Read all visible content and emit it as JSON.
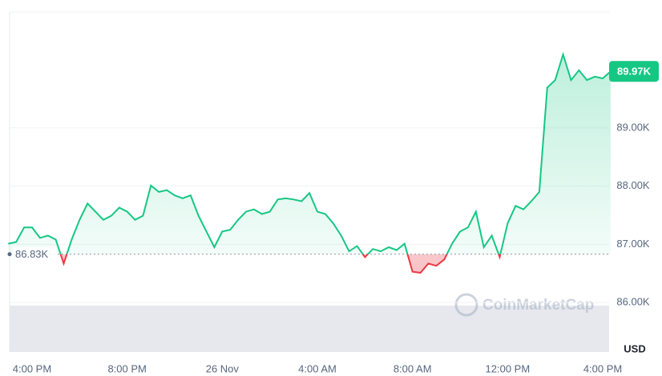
{
  "chart_data": {
    "type": "line",
    "categories": [
      null,
      null,
      null,
      "4:00 PM",
      null,
      null,
      null,
      null,
      null,
      null,
      null,
      null,
      null,
      null,
      null,
      "8:00 PM",
      null,
      null,
      null,
      null,
      null,
      null,
      null,
      null,
      null,
      null,
      null,
      "26 Nov",
      null,
      null,
      null,
      null,
      null,
      null,
      null,
      null,
      null,
      null,
      null,
      "4:00 AM",
      null,
      null,
      null,
      null,
      null,
      null,
      null,
      null,
      null,
      null,
      null,
      "8:00 AM",
      null,
      null,
      null,
      null,
      null,
      null,
      null,
      null,
      null,
      null,
      null,
      "12:00 PM",
      null,
      null,
      null,
      null,
      null,
      null,
      null,
      null,
      null,
      null,
      null,
      "4:00 PM",
      null
    ],
    "values": [
      87010,
      87040,
      87290,
      87290,
      87110,
      87150,
      87080,
      86670,
      87080,
      87420,
      87700,
      87560,
      87420,
      87490,
      87630,
      87560,
      87420,
      87490,
      88010,
      87900,
      87930,
      87840,
      87790,
      87840,
      87490,
      87220,
      86950,
      87220,
      87250,
      87420,
      87560,
      87600,
      87520,
      87560,
      87770,
      87790,
      87770,
      87740,
      87880,
      87560,
      87520,
      87360,
      87150,
      86880,
      86970,
      86780,
      86920,
      86880,
      86950,
      86900,
      87010,
      86530,
      86510,
      86670,
      86630,
      86740,
      87010,
      87220,
      87290,
      87560,
      86950,
      87150,
      86780,
      87360,
      87660,
      87600,
      87740,
      87900,
      89690,
      89820,
      90260,
      89820,
      89990,
      89820,
      89880,
      89850,
      89970
    ],
    "color": "#16c784",
    "below_color": "#ea3943",
    "baseline": {
      "value": 86830,
      "label": "86.83K"
    },
    "last_price": {
      "value": 89970,
      "label": "89.97K"
    },
    "ylim": [
      85150,
      90990
    ],
    "yticks": [
      {
        "value": 86000,
        "label": "86.00K"
      },
      {
        "value": 87000,
        "label": "87.00K"
      },
      {
        "value": 88000,
        "label": "88.00K"
      },
      {
        "value": 89000,
        "label": "89.00K"
      }
    ],
    "y_unit": "USD",
    "watermark": "CoinMarketCap",
    "grid": true
  }
}
